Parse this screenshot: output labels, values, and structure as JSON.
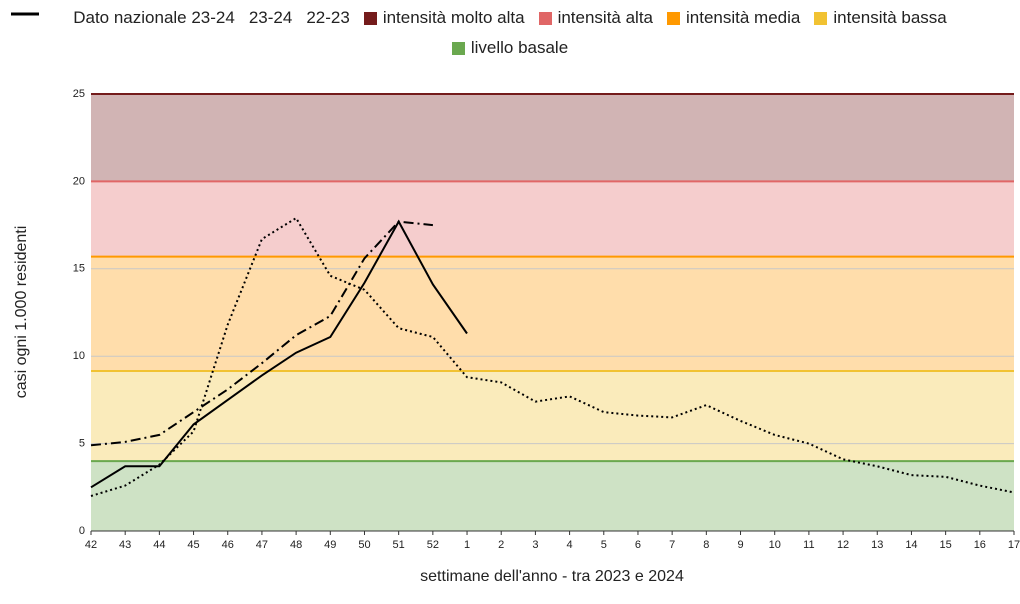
{
  "chart_data": {
    "type": "line",
    "y_label": "casi ogni 1.000 residenti",
    "x_label": "settimane dell'anno - tra 2023 e 2024",
    "categories": [
      "42",
      "43",
      "44",
      "45",
      "46",
      "47",
      "48",
      "49",
      "50",
      "51",
      "52",
      "1",
      "2",
      "3",
      "4",
      "5",
      "6",
      "7",
      "8",
      "9",
      "10",
      "11",
      "12",
      "13",
      "14",
      "15",
      "16",
      "17"
    ],
    "series": [
      {
        "name": "Dato nazionale 23-24",
        "color": "#000000",
        "style": "dashdot",
        "values": [
          4.9,
          5.1,
          5.5,
          6.8,
          8.1,
          9.6,
          11.2,
          12.3,
          15.6,
          17.7,
          17.5,
          null,
          null,
          null,
          null,
          null,
          null,
          null,
          null,
          null,
          null,
          null,
          null,
          null,
          null,
          null,
          null,
          null
        ]
      },
      {
        "name": "23-24",
        "color": "#000000",
        "style": "solid",
        "values": [
          2.5,
          3.7,
          3.7,
          6.1,
          7.5,
          8.9,
          10.2,
          11.1,
          14.2,
          17.7,
          14.1,
          11.3,
          null,
          null,
          null,
          null,
          null,
          null,
          null,
          null,
          null,
          null,
          null,
          null,
          null,
          null,
          null,
          null
        ]
      },
      {
        "name": "22-23",
        "color": "#000000",
        "style": "dotted",
        "values": [
          2.0,
          2.6,
          3.8,
          5.7,
          11.8,
          16.7,
          17.9,
          14.6,
          13.8,
          11.6,
          11.1,
          8.8,
          8.5,
          7.4,
          7.7,
          6.8,
          6.6,
          6.5,
          7.2,
          6.3,
          5.5,
          5.0,
          4.1,
          3.7,
          3.2,
          3.1,
          2.6,
          2.2
        ]
      }
    ],
    "bands": [
      {
        "name": "intensità molto alta",
        "color": "#741b1b",
        "range": [
          20,
          25
        ]
      },
      {
        "name": "intensità alta",
        "color": "#e06666",
        "range": [
          15.7,
          20
        ]
      },
      {
        "name": "intensità media",
        "color": "#ff9900",
        "range": [
          9.15,
          15.7
        ]
      },
      {
        "name": "intensità bassa",
        "color": "#f1c232",
        "range": [
          4,
          9.15
        ]
      },
      {
        "name": "livello basale",
        "color": "#6aa84f",
        "range": [
          0,
          4
        ]
      }
    ],
    "ylim": [
      0,
      25
    ],
    "yticks": [
      0,
      5,
      10,
      15,
      20,
      25
    ],
    "grid": true
  }
}
